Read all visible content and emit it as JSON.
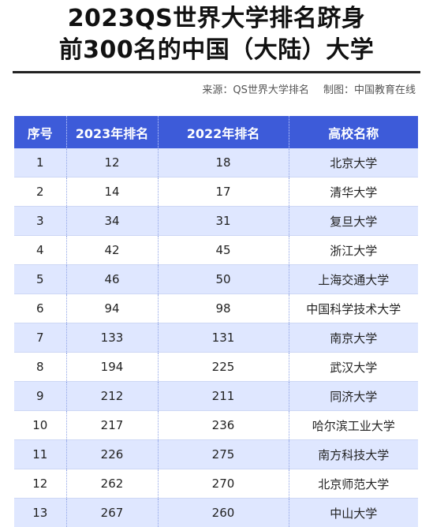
{
  "title": {
    "line1": "2023QS世界大学排名跻身",
    "line2": "前300名的中国（大陆）大学"
  },
  "source": {
    "from": "来源：QS世界大学排名",
    "made_by": "制图：中国教育在线"
  },
  "table": {
    "headers": [
      "序号",
      "2023年排名",
      "2022年排名",
      "高校名称"
    ],
    "rows": [
      [
        "1",
        "12",
        "18",
        "北京大学"
      ],
      [
        "2",
        "14",
        "17",
        "清华大学"
      ],
      [
        "3",
        "34",
        "31",
        "复旦大学"
      ],
      [
        "4",
        "42",
        "45",
        "浙江大学"
      ],
      [
        "5",
        "46",
        "50",
        "上海交通大学"
      ],
      [
        "6",
        "94",
        "98",
        "中国科学技术大学"
      ],
      [
        "7",
        "133",
        "131",
        "南京大学"
      ],
      [
        "8",
        "194",
        "225",
        "武汉大学"
      ],
      [
        "9",
        "212",
        "211",
        "同济大学"
      ],
      [
        "10",
        "217",
        "236",
        "哈尔滨工业大学"
      ],
      [
        "11",
        "226",
        "275",
        "南方科技大学"
      ],
      [
        "12",
        "262",
        "270",
        "北京师范大学"
      ],
      [
        "13",
        "267",
        "260",
        "中山大学"
      ]
    ]
  },
  "colors": {
    "header_bg": "#3d5bd9",
    "row_alt": "#dfe7ff"
  }
}
